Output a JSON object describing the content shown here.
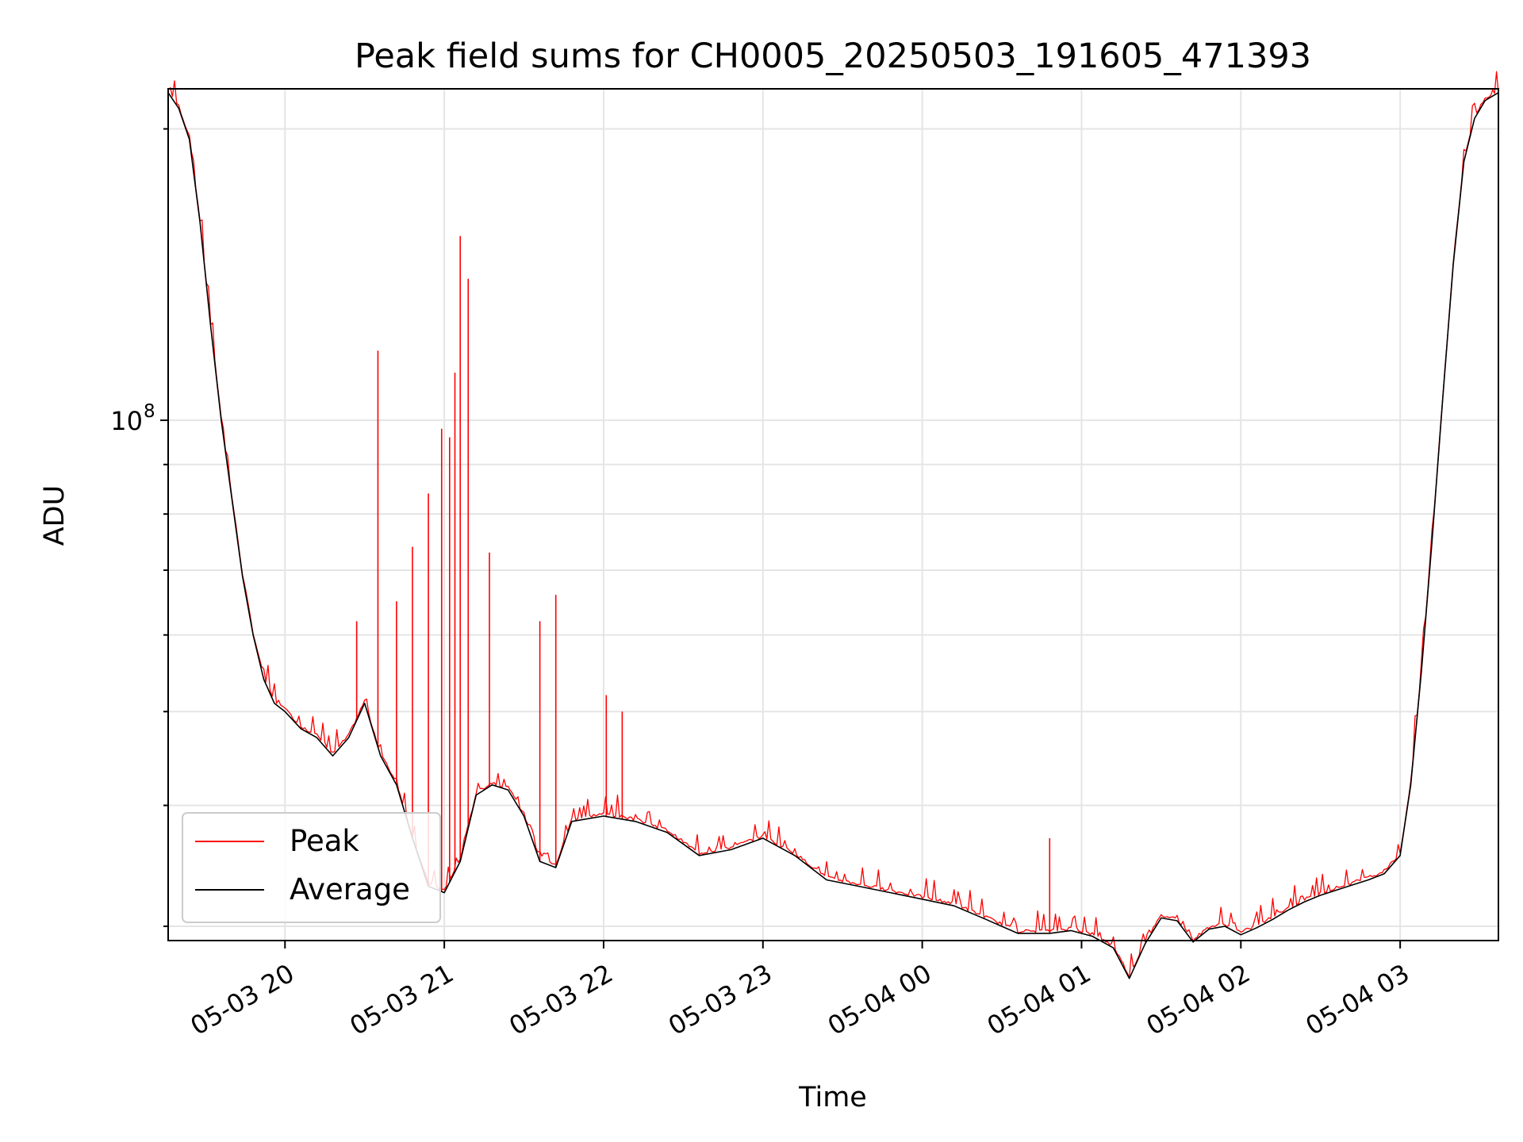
{
  "chart_data": {
    "type": "line",
    "title": "Peak field sums for CH0005_20250503_191605_471393",
    "xlabel": "Time",
    "ylabel": "ADU",
    "yscale": "log",
    "ylim": [
      29000000,
      220000000
    ],
    "xlim": [
      "2025-05-03 19:16",
      "2025-05-04 03:37"
    ],
    "x_tick_labels": [
      "05-03 20",
      "05-03 21",
      "05-03 22",
      "05-03 23",
      "05-04 00",
      "05-04 01",
      "05-04 02",
      "05-04 03"
    ],
    "x_ticks": [
      "2025-05-03 20:00",
      "2025-05-03 21:00",
      "2025-05-03 22:00",
      "2025-05-03 23:00",
      "2025-05-04 00:00",
      "2025-05-04 01:00",
      "2025-05-04 02:00",
      "2025-05-04 03:00"
    ],
    "y_tick_label": "10",
    "y_tick_exponent": "8",
    "y_tick_value": 100000000,
    "y_minor_ticks": [
      30000000,
      40000000,
      50000000,
      60000000,
      70000000,
      80000000,
      90000000,
      200000000
    ],
    "grid": true,
    "legend_position": "lower-left",
    "series": [
      {
        "name": "Average",
        "color": "#000000",
        "x": [
          "2025-05-03 19:16",
          "2025-05-03 19:20",
          "2025-05-03 19:24",
          "2025-05-03 19:28",
          "2025-05-03 19:32",
          "2025-05-03 19:36",
          "2025-05-03 19:40",
          "2025-05-03 19:44",
          "2025-05-03 19:48",
          "2025-05-03 19:52",
          "2025-05-03 19:56",
          "2025-05-03 20:00",
          "2025-05-03 20:06",
          "2025-05-03 20:12",
          "2025-05-03 20:18",
          "2025-05-03 20:24",
          "2025-05-03 20:30",
          "2025-05-03 20:36",
          "2025-05-03 20:42",
          "2025-05-03 20:48",
          "2025-05-03 20:54",
          "2025-05-03 21:00",
          "2025-05-03 21:06",
          "2025-05-03 21:12",
          "2025-05-03 21:18",
          "2025-05-03 21:24",
          "2025-05-03 21:30",
          "2025-05-03 21:36",
          "2025-05-03 21:42",
          "2025-05-03 21:48",
          "2025-05-03 22:00",
          "2025-05-03 22:12",
          "2025-05-03 22:24",
          "2025-05-03 22:36",
          "2025-05-03 22:48",
          "2025-05-03 23:00",
          "2025-05-03 23:12",
          "2025-05-03 23:24",
          "2025-05-03 23:36",
          "2025-05-03 23:48",
          "2025-05-04 00:00",
          "2025-05-04 00:12",
          "2025-05-04 00:24",
          "2025-05-04 00:36",
          "2025-05-04 00:48",
          "2025-05-04 00:56",
          "2025-05-04 01:04",
          "2025-05-04 01:12",
          "2025-05-04 01:18",
          "2025-05-04 01:24",
          "2025-05-04 01:30",
          "2025-05-04 01:36",
          "2025-05-04 01:42",
          "2025-05-04 01:48",
          "2025-05-04 01:54",
          "2025-05-04 02:00",
          "2025-05-04 02:06",
          "2025-05-04 02:12",
          "2025-05-04 02:18",
          "2025-05-04 02:24",
          "2025-05-04 02:30",
          "2025-05-04 02:36",
          "2025-05-04 02:42",
          "2025-05-04 02:48",
          "2025-05-04 02:54",
          "2025-05-04 03:00",
          "2025-05-04 03:04",
          "2025-05-04 03:08",
          "2025-05-04 03:12",
          "2025-05-04 03:16",
          "2025-05-04 03:20",
          "2025-05-04 03:24",
          "2025-05-04 03:28",
          "2025-05-04 03:32",
          "2025-05-04 03:37"
        ],
        "values": [
          218000000,
          210000000,
          195000000,
          160000000,
          125000000,
          100000000,
          83000000,
          69000000,
          60000000,
          54000000,
          51000000,
          50000000,
          48000000,
          47000000,
          45000000,
          47000000,
          51000000,
          45000000,
          42000000,
          37000000,
          33000000,
          32500000,
          35000000,
          41000000,
          42000000,
          41500000,
          39000000,
          35000000,
          34500000,
          38500000,
          39000000,
          38500000,
          37500000,
          35500000,
          36000000,
          37000000,
          35500000,
          33500000,
          33000000,
          32500000,
          32000000,
          31500000,
          30500000,
          29500000,
          29500000,
          29700000,
          29300000,
          28500000,
          26500000,
          28800000,
          30600000,
          30400000,
          28900000,
          29800000,
          30000000,
          29400000,
          29900000,
          30500000,
          31200000,
          31800000,
          32300000,
          32700000,
          33100000,
          33500000,
          34000000,
          35500000,
          42000000,
          55000000,
          75000000,
          105000000,
          145000000,
          185000000,
          205000000,
          214000000,
          218000000
        ]
      },
      {
        "name": "Peak",
        "color": "#ff0000",
        "spikes": [
          {
            "x": "2025-05-03 20:27",
            "y": 62000000
          },
          {
            "x": "2025-05-03 20:35",
            "y": 118000000
          },
          {
            "x": "2025-05-03 20:42",
            "y": 65000000
          },
          {
            "x": "2025-05-03 20:48",
            "y": 74000000
          },
          {
            "x": "2025-05-03 20:54",
            "y": 84000000
          },
          {
            "x": "2025-05-03 20:59",
            "y": 98000000
          },
          {
            "x": "2025-05-03 21:02",
            "y": 96000000
          },
          {
            "x": "2025-05-03 21:04",
            "y": 112000000
          },
          {
            "x": "2025-05-03 21:06",
            "y": 155000000
          },
          {
            "x": "2025-05-03 21:09",
            "y": 140000000
          },
          {
            "x": "2025-05-03 21:17",
            "y": 73000000
          },
          {
            "x": "2025-05-03 21:36",
            "y": 62000000
          },
          {
            "x": "2025-05-03 21:42",
            "y": 66000000
          },
          {
            "x": "2025-05-03 22:01",
            "y": 52000000
          },
          {
            "x": "2025-05-03 22:07",
            "y": 50000000
          },
          {
            "x": "2025-05-04 00:48",
            "y": 37000000
          }
        ]
      }
    ]
  },
  "legend": {
    "items": [
      {
        "label": "Peak",
        "color": "#ff0000"
      },
      {
        "label": "Average",
        "color": "#000000"
      }
    ]
  }
}
